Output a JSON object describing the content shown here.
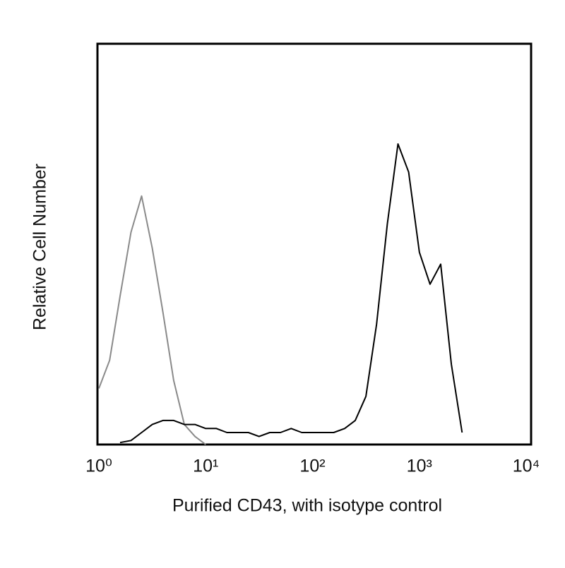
{
  "chart_data": {
    "type": "line",
    "x_label": "Purified CD43, with isotype control",
    "y_label": "Relative Cell Number",
    "log_x": true,
    "xlim": [
      1,
      10000
    ],
    "xticks": [
      {
        "value": 1,
        "label": "10⁰"
      },
      {
        "value": 10,
        "label": "10¹"
      },
      {
        "value": 100,
        "label": "10²"
      },
      {
        "value": 1000,
        "label": "10³"
      },
      {
        "value": 10000,
        "label": "10⁴"
      }
    ],
    "ylim": [
      0,
      100
    ],
    "x": [
      1,
      1.26,
      1.58,
      2,
      2.51,
      3.16,
      3.98,
      5.01,
      6.31,
      7.94,
      10,
      12.6,
      15.8,
      20,
      25.1,
      31.6,
      39.8,
      50.1,
      63.1,
      79.4,
      100,
      126,
      158,
      200,
      251,
      316,
      398,
      501,
      631,
      794,
      1000,
      1259,
      1585,
      1995,
      2512,
      3162
    ],
    "series": [
      {
        "color": "#8a8a8a",
        "values": [
          14,
          21,
          37,
          53,
          62,
          49,
          33,
          16,
          5,
          2,
          0,
          null,
          null,
          null,
          null,
          null,
          null,
          null,
          null,
          null,
          null,
          null,
          null,
          null,
          null,
          null,
          null,
          null,
          null,
          null,
          null,
          null,
          null,
          null,
          null,
          null
        ]
      },
      {
        "color": "#000000",
        "values": [
          null,
          null,
          0.5,
          1,
          3,
          5,
          6,
          6,
          5,
          5,
          4,
          4,
          3,
          3,
          3,
          2,
          3,
          3,
          4,
          3,
          3,
          3,
          3,
          4,
          6,
          12,
          30,
          55,
          75,
          68,
          48,
          40,
          45,
          20,
          3,
          null
        ]
      }
    ]
  }
}
